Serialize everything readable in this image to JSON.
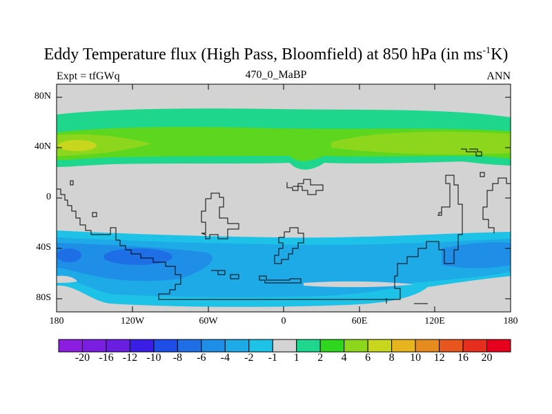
{
  "title": {
    "main": "Eddy Temperature flux (High Pass, Bloomfield) at 850 hPa (in ms",
    "sup": "-1",
    "suffix": "K)"
  },
  "expt": "Expt = tfGWq",
  "subtitle": "470_0_MaBP",
  "season": "ANN",
  "lat_labels": [
    "80N",
    "40N",
    "0",
    "40S",
    "80S"
  ],
  "lon_labels": [
    "180",
    "120W",
    "60W",
    "0",
    "60E",
    "120E",
    "180"
  ],
  "colorbar": {
    "labels": [
      "-20",
      "-16",
      "-12",
      "-10",
      "-8",
      "-6",
      "-4",
      "-2",
      "-1",
      "1",
      "2",
      "4",
      "6",
      "8",
      "10",
      "12",
      "16",
      "20"
    ],
    "colors": [
      "#8c1ee0",
      "#7a1ee0",
      "#6a1ee0",
      "#3a1ee6",
      "#1e4ee6",
      "#1e6ee6",
      "#1e8ee6",
      "#1eaae6",
      "#1ec2e6",
      "#d3d3d3",
      "#1ed68c",
      "#2ed61e",
      "#8cd61e",
      "#c8d61e",
      "#e6b41e",
      "#e68c1e",
      "#e6561e",
      "#e62e1e",
      "#e6001e"
    ]
  },
  "palette": {
    "land_missing": "#d3d3d3",
    "green_light": "#1ed68c",
    "green": "#5cd61e",
    "yellow_green": "#8cd61e",
    "yellow": "#c8d61e",
    "cyan": "#1ec2e6",
    "blue_light": "#1eaae6",
    "blue": "#1e8ee6",
    "blue_dark": "#1e6ee6"
  }
}
